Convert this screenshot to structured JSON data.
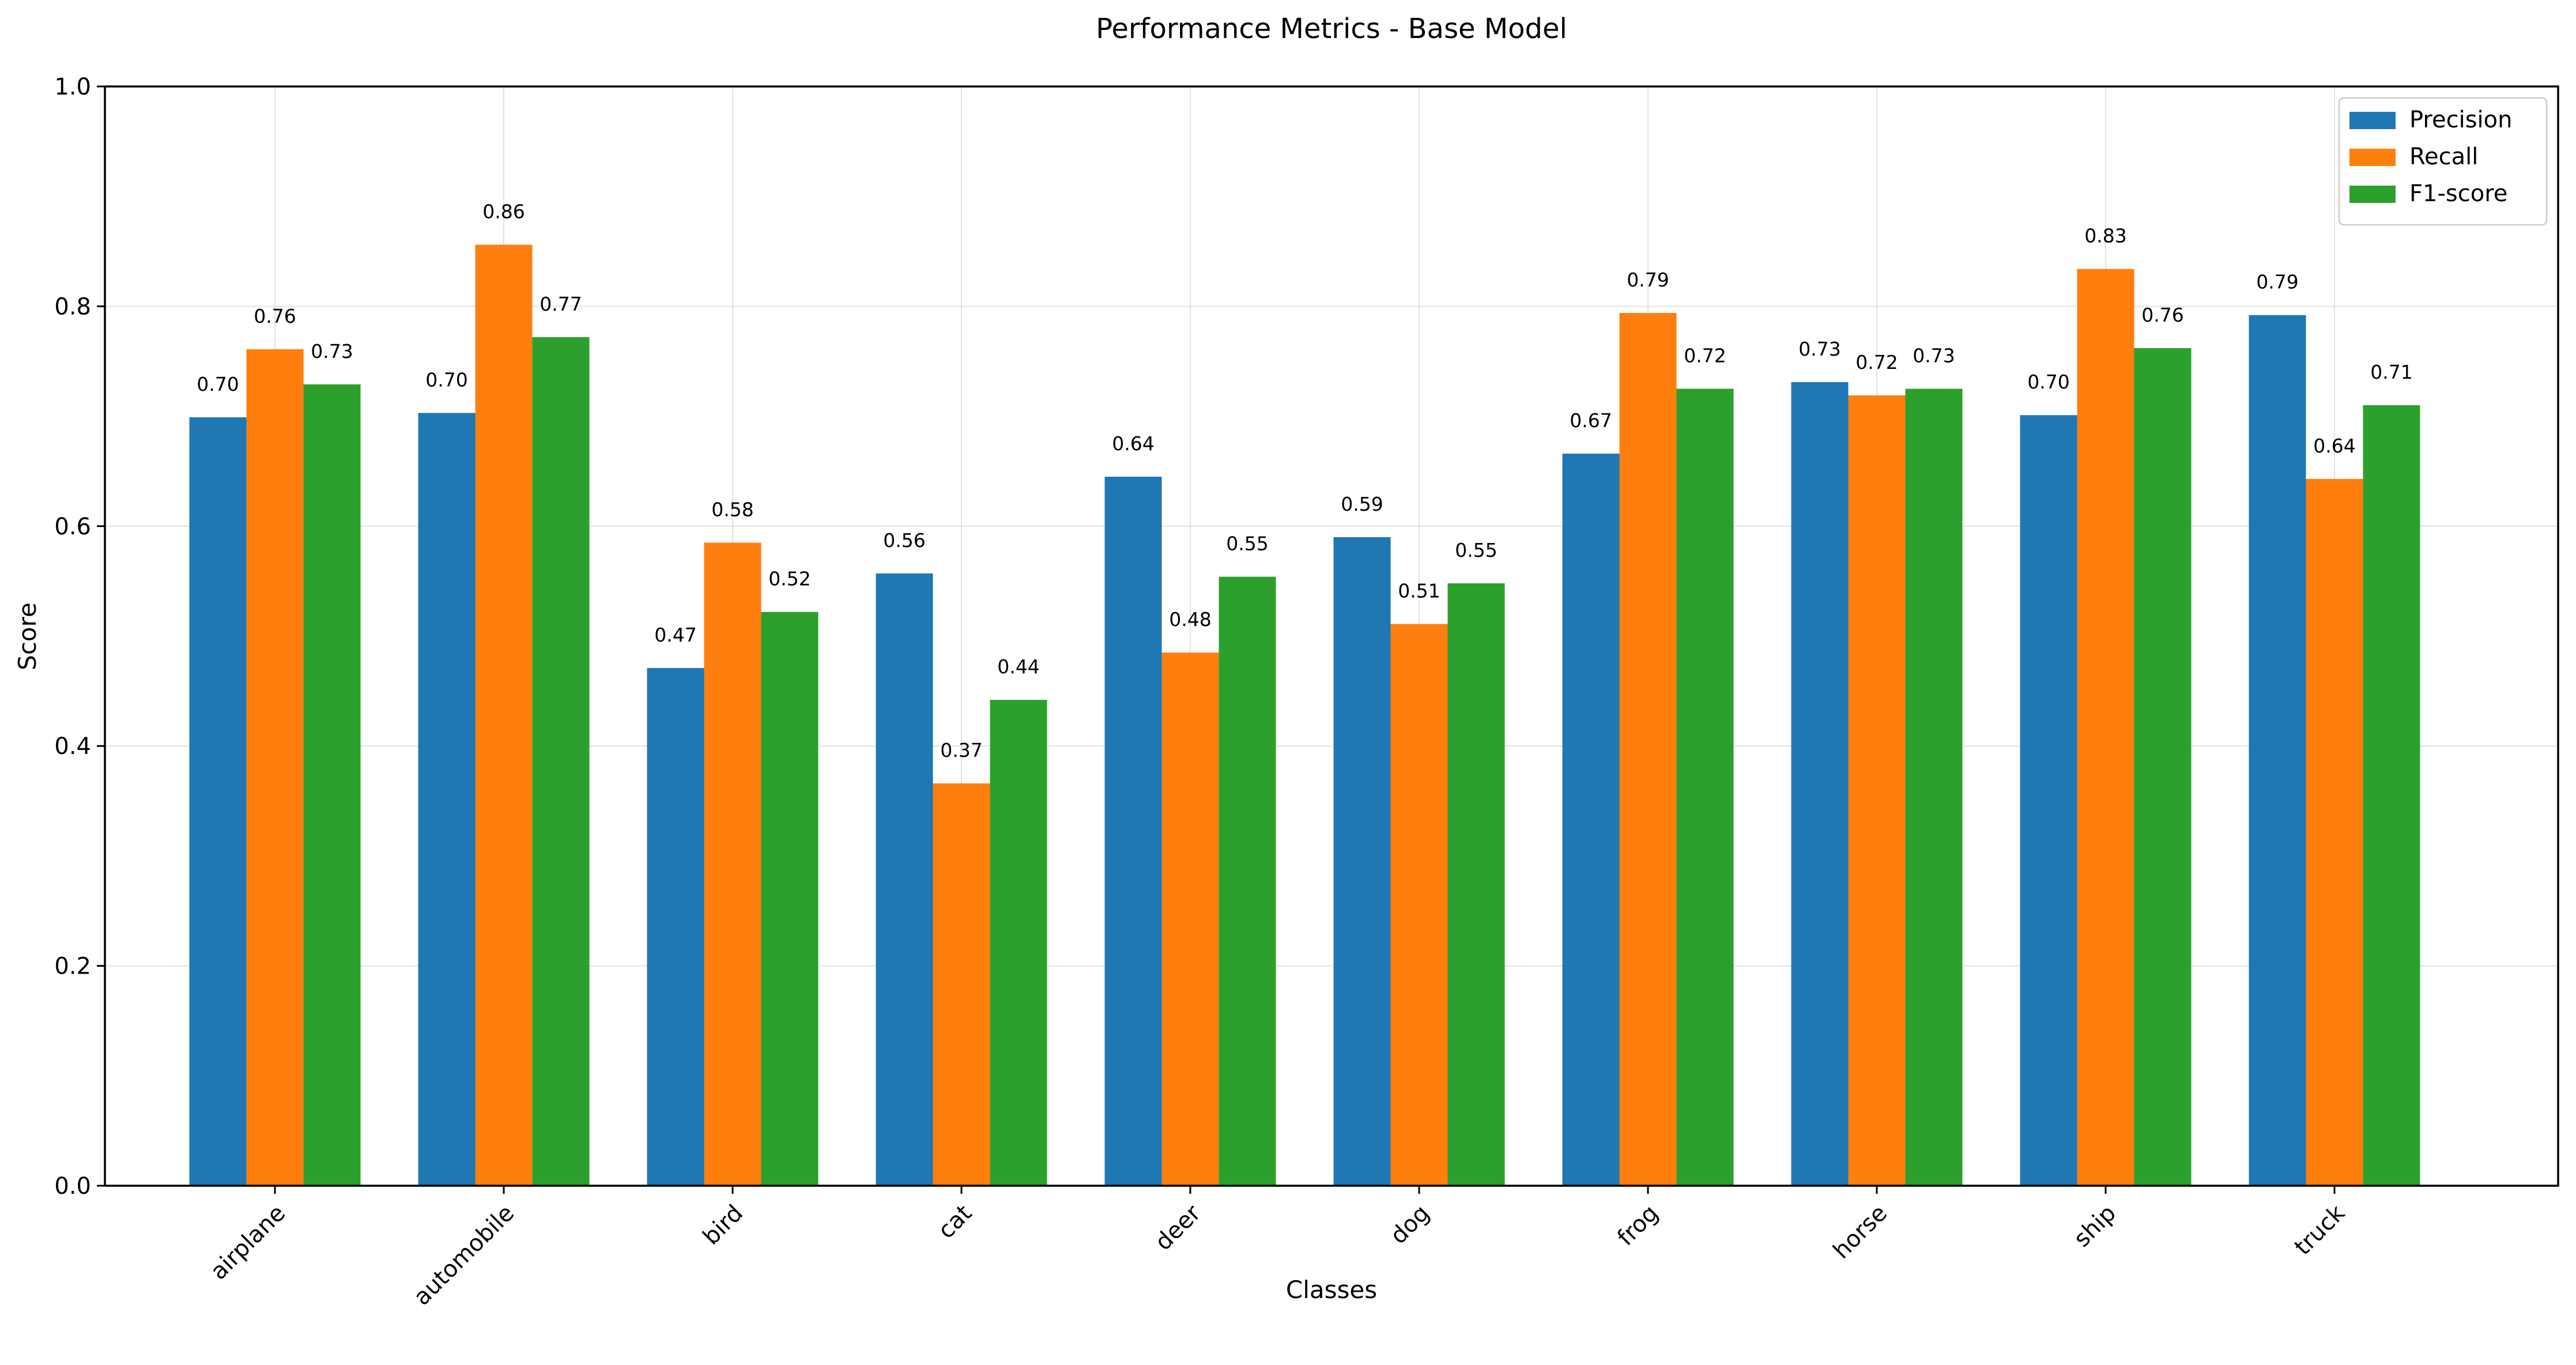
{
  "chart_data": {
    "type": "bar",
    "title": "Performance Metrics - Base Model",
    "xlabel": "Classes",
    "ylabel": "Score",
    "ylim": [
      0,
      1.0
    ],
    "yticks": [
      "0.0",
      "0.2",
      "0.4",
      "0.6",
      "0.8",
      "1.0"
    ],
    "grid": true,
    "legend_position": "top-right",
    "categories": [
      "airplane",
      "automobile",
      "bird",
      "cat",
      "deer",
      "dog",
      "frog",
      "horse",
      "ship",
      "truck"
    ],
    "series": [
      {
        "name": "Precision",
        "color": "#1f77b4",
        "values": [
          0.699,
          0.703,
          0.471,
          0.557,
          0.645,
          0.59,
          0.666,
          0.731,
          0.701,
          0.792
        ],
        "labels": [
          "0.70",
          "0.70",
          "0.47",
          "0.56",
          "0.64",
          "0.59",
          "0.67",
          "0.73",
          "0.70",
          "0.79"
        ]
      },
      {
        "name": "Recall",
        "color": "#ff7f0e",
        "values": [
          0.761,
          0.856,
          0.585,
          0.366,
          0.485,
          0.511,
          0.794,
          0.719,
          0.834,
          0.643
        ],
        "labels": [
          "0.76",
          "0.86",
          "0.58",
          "0.37",
          "0.48",
          "0.51",
          "0.79",
          "0.72",
          "0.83",
          "0.64"
        ]
      },
      {
        "name": "F1-score",
        "color": "#2ca02c",
        "values": [
          0.729,
          0.772,
          0.522,
          0.442,
          0.554,
          0.548,
          0.725,
          0.725,
          0.762,
          0.71
        ],
        "labels": [
          "0.73",
          "0.77",
          "0.52",
          "0.44",
          "0.55",
          "0.55",
          "0.72",
          "0.73",
          "0.76",
          "0.71"
        ]
      }
    ]
  }
}
